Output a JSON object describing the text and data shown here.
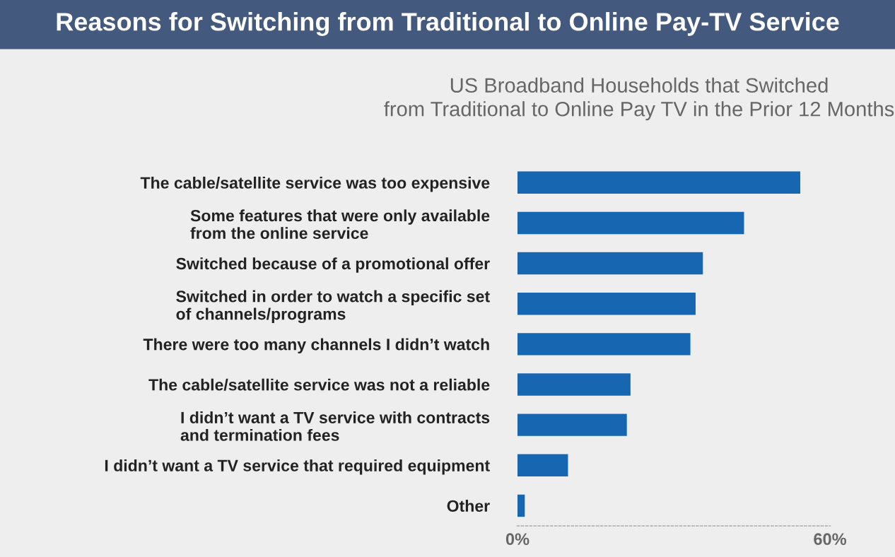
{
  "chart_data": {
    "type": "bar",
    "orientation": "horizontal",
    "title": "Reasons for Switching from Traditional to Online Pay-TV Service",
    "subtitle": "US Broadband Households that Switched\nfrom Traditional to Online Pay TV in the Prior 12 Months",
    "categories": [
      "The cable/satellite service was too expensive",
      "Some features that were only available\nfrom the online service",
      "Switched because of a promotional offer",
      "Switched in order to watch a specific set\nof channels/programs",
      "There were too many channels I didn’t watch",
      "The cable/satellite service was not a reliable",
      "I didn’t want a TV service with contracts\nand termination fees",
      "I didn’t want a TV service that required equipment",
      "Other"
    ],
    "values": [
      54.3,
      43.5,
      35.6,
      34.2,
      33.2,
      21.7,
      21.0,
      9.7,
      1.4
    ],
    "color": "#1766b2",
    "xlim": [
      0,
      60
    ],
    "xticks": [
      {
        "value": 0,
        "label": "0%"
      },
      {
        "value": 60,
        "label": "60%"
      }
    ],
    "grid": false
  }
}
